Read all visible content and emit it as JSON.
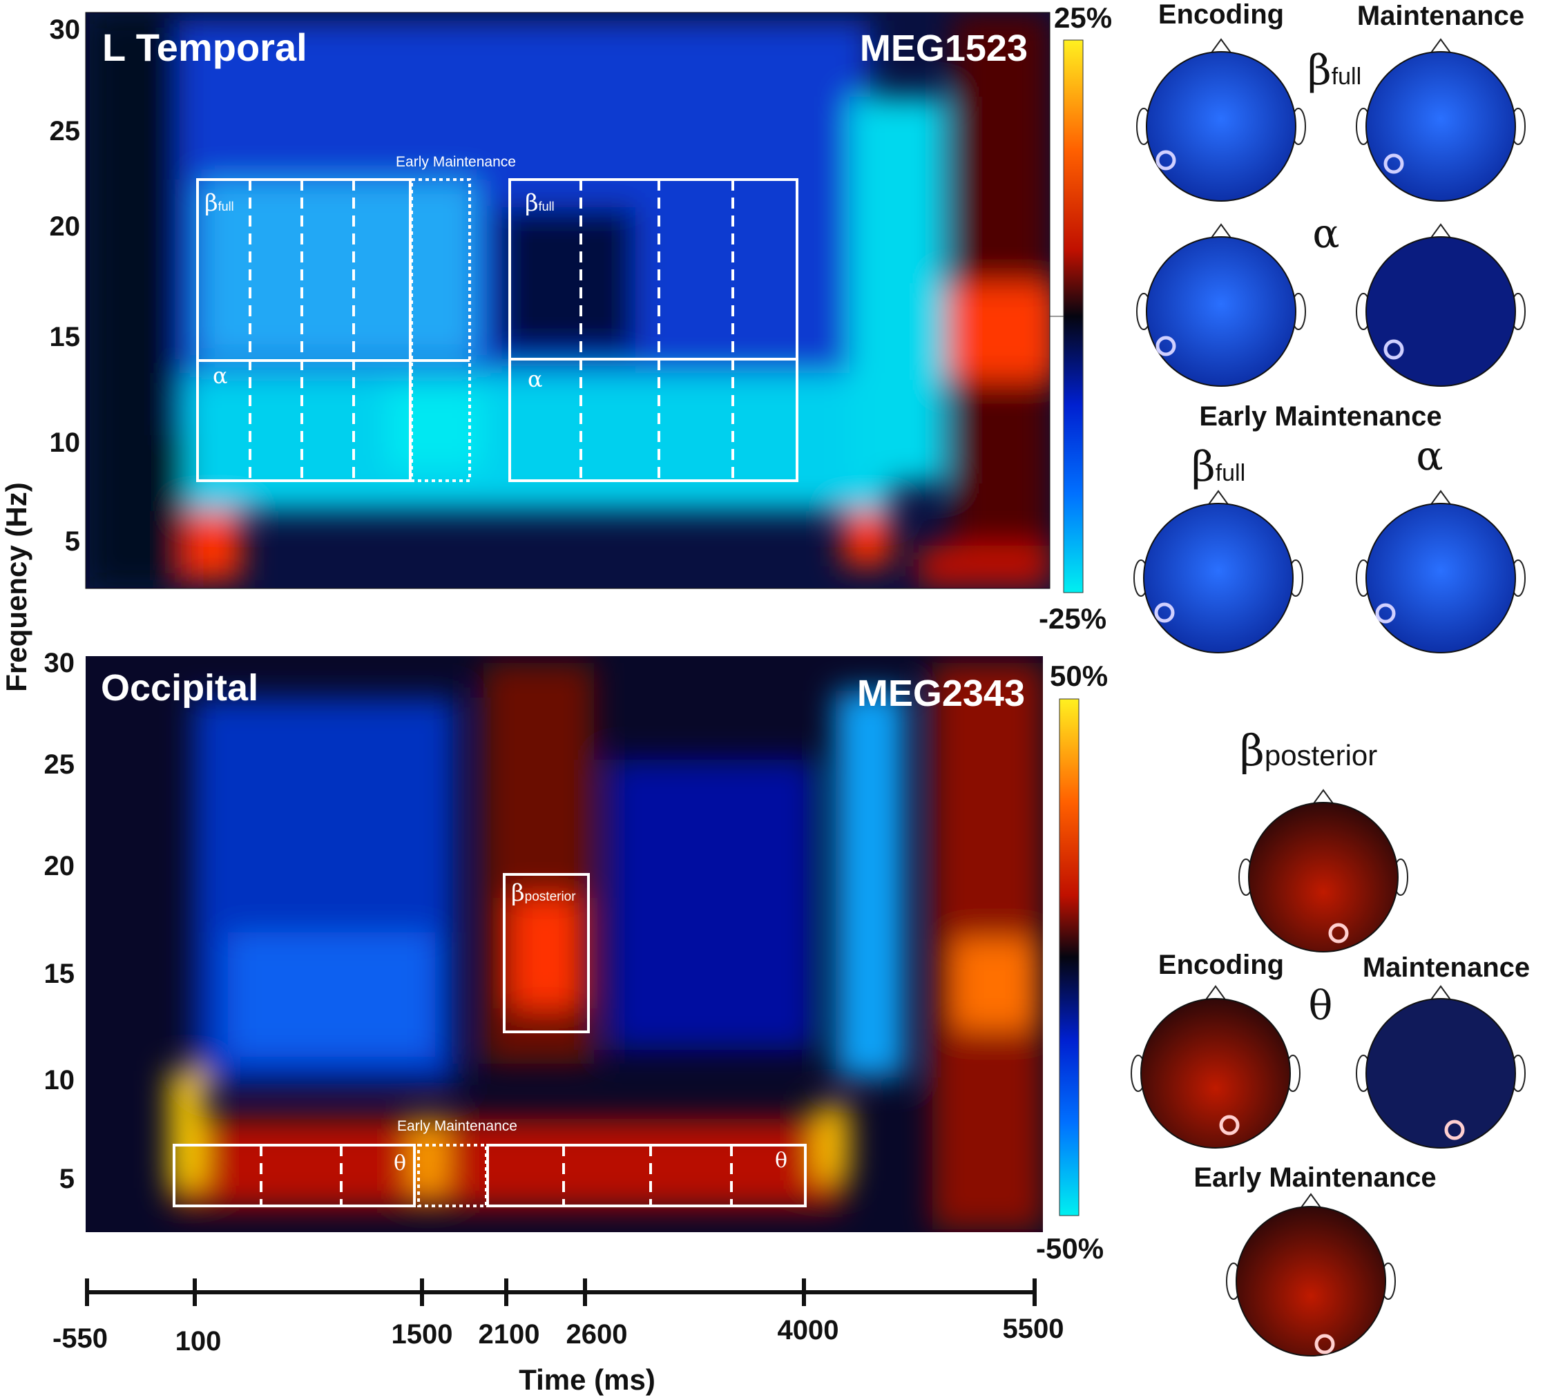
{
  "chart_data": [
    {
      "type": "heatmap",
      "panel_label": "L Temporal",
      "sensor": "MEG1523",
      "ylabel": "Frequency (Hz)",
      "yticks": [
        5,
        10,
        15,
        20,
        25,
        30
      ],
      "ylim": [
        3,
        30
      ],
      "colorbar": {
        "max": "25%",
        "min": "-25%"
      },
      "colormap": [
        "#00e5f0",
        "#0040ff",
        "#000030",
        "#c01000",
        "#ff4000",
        "#fff020"
      ],
      "box_labels": {
        "beta": "β",
        "beta_sub": "full",
        "alpha": "α",
        "early": "Early Maintenance"
      }
    },
    {
      "type": "heatmap",
      "panel_label": "Occipital",
      "sensor": "MEG2343",
      "ylabel": "Frequency (Hz)",
      "yticks": [
        5,
        10,
        15,
        20,
        25,
        30
      ],
      "ylim": [
        3,
        30
      ],
      "colorbar": {
        "max": "50%",
        "min": "-50%"
      },
      "colormap": [
        "#00e5f0",
        "#0040ff",
        "#000030",
        "#c01000",
        "#ff4000",
        "#fff020"
      ],
      "box_labels": {
        "beta": "β",
        "beta_sub": "posterior",
        "theta": "θ",
        "early": "Early Maintenance"
      }
    }
  ],
  "time_axis": {
    "xlabel": "Time (ms)",
    "ticks": [
      "-550",
      "100",
      "1500",
      "2100",
      "2600",
      "4000",
      "5500"
    ]
  },
  "topomaps": {
    "top": {
      "encoding": "Encoding",
      "maintenance": "Maintenance",
      "beta": "β",
      "beta_sub": "full",
      "alpha": "α",
      "early": "Early Maintenance"
    },
    "bottom": {
      "beta": "β",
      "beta_sub": "posterior",
      "encoding": "Encoding",
      "maintenance": "Maintenance",
      "theta": "θ",
      "early": "Early Maintenance"
    }
  }
}
